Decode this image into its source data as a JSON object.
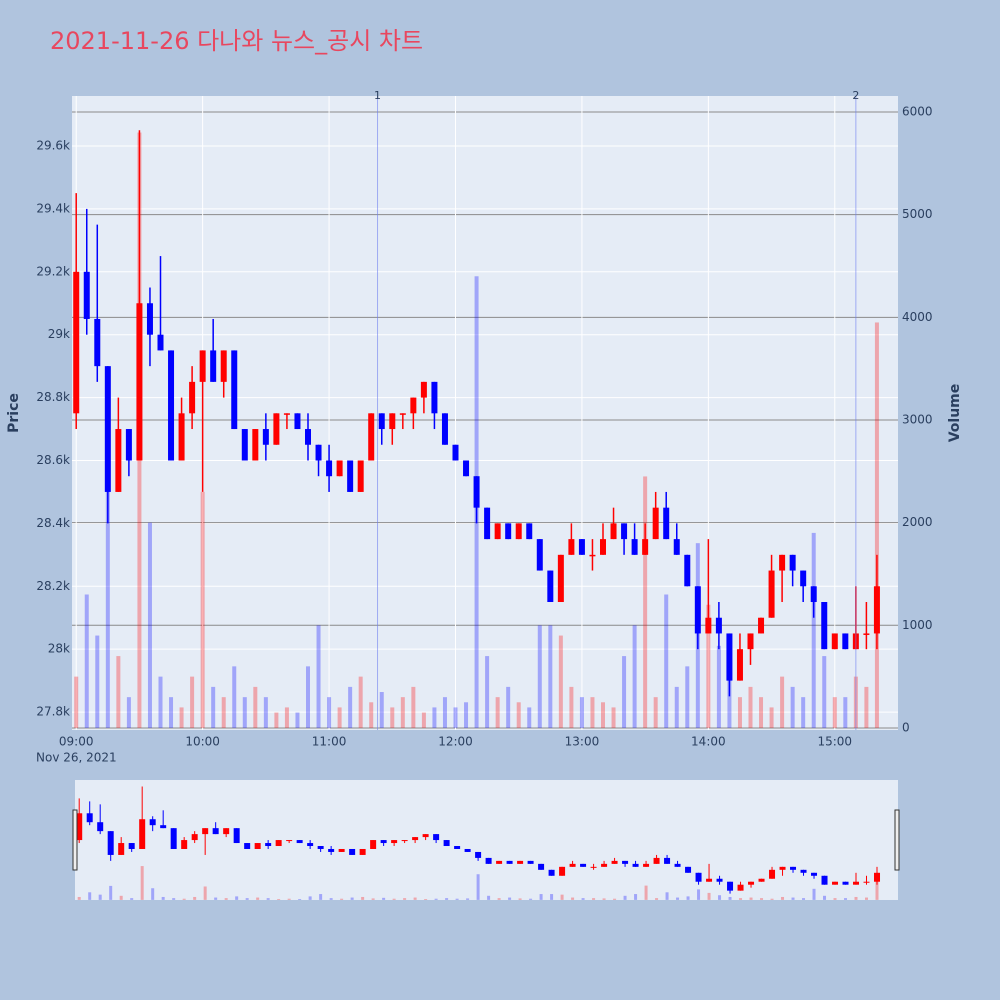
{
  "chart_data": {
    "type": "candlestick",
    "title": "2021-11-26 다나와 뉴스_공시 차트",
    "y_label": "Price",
    "y2_label": "Volume",
    "x_date_label": "Nov 26, 2021",
    "increasing_color": "#ff0000",
    "decreasing_color": "#0000ff",
    "grid": true,
    "x": [
      "2021-11-26 09:00",
      "2021-11-26 09:05",
      "2021-11-26 09:10",
      "2021-11-26 09:15",
      "2021-11-26 09:20",
      "2021-11-26 09:25",
      "2021-11-26 09:30",
      "2021-11-26 09:35",
      "2021-11-26 09:40",
      "2021-11-26 09:45",
      "2021-11-26 09:50",
      "2021-11-26 09:55",
      "2021-11-26 10:00",
      "2021-11-26 10:05",
      "2021-11-26 10:10",
      "2021-11-26 10:15",
      "2021-11-26 10:20",
      "2021-11-26 10:25",
      "2021-11-26 10:30",
      "2021-11-26 10:35",
      "2021-11-26 10:40",
      "2021-11-26 10:45",
      "2021-11-26 10:50",
      "2021-11-26 10:55",
      "2021-11-26 11:00",
      "2021-11-26 11:05",
      "2021-11-26 11:10",
      "2021-11-26 11:15",
      "2021-11-26 11:20",
      "2021-11-26 11:25",
      "2021-11-26 11:30",
      "2021-11-26 11:35",
      "2021-11-26 11:40",
      "2021-11-26 11:45",
      "2021-11-26 11:50",
      "2021-11-26 11:55",
      "2021-11-26 12:00",
      "2021-11-26 12:05",
      "2021-11-26 12:10",
      "2021-11-26 12:15",
      "2021-11-26 12:20",
      "2021-11-26 12:25",
      "2021-11-26 12:30",
      "2021-11-26 12:35",
      "2021-11-26 12:40",
      "2021-11-26 12:45",
      "2021-11-26 12:50",
      "2021-11-26 12:55",
      "2021-11-26 13:00",
      "2021-11-26 13:05",
      "2021-11-26 13:10",
      "2021-11-26 13:15",
      "2021-11-26 13:20",
      "2021-11-26 13:25",
      "2021-11-26 13:30",
      "2021-11-26 13:35",
      "2021-11-26 13:40",
      "2021-11-26 13:45",
      "2021-11-26 13:50",
      "2021-11-26 13:55",
      "2021-11-26 14:00",
      "2021-11-26 14:05",
      "2021-11-26 14:10",
      "2021-11-26 14:15",
      "2021-11-26 14:20",
      "2021-11-26 14:25",
      "2021-11-26 14:30",
      "2021-11-26 14:35",
      "2021-11-26 14:40",
      "2021-11-26 14:45",
      "2021-11-26 14:50",
      "2021-11-26 14:55",
      "2021-11-26 15:00",
      "2021-11-26 15:05",
      "2021-11-26 15:10",
      "2021-11-26 15:15",
      "2021-11-26 15:20"
    ],
    "open": [
      28750,
      29200,
      29050,
      28900,
      28500,
      28700,
      28600,
      29100,
      29000,
      28950,
      28600,
      28750,
      28850,
      28950,
      28850,
      28950,
      28700,
      28600,
      28700,
      28650,
      28750,
      28750,
      28700,
      28650,
      28600,
      28550,
      28600,
      28500,
      28600,
      28750,
      28700,
      28750,
      28750,
      28800,
      28850,
      28750,
      28650,
      28600,
      28550,
      28450,
      28350,
      28400,
      28350,
      28400,
      28350,
      28250,
      28150,
      28300,
      28350,
      28300,
      28300,
      28350,
      28400,
      28350,
      28300,
      28350,
      28450,
      28350,
      28300,
      28200,
      28050,
      28100,
      28050,
      27900,
      28000,
      28050,
      28100,
      28250,
      28300,
      28250,
      28200,
      28150,
      28000,
      28050,
      28000,
      28050,
      28050
    ],
    "high": [
      29450,
      29400,
      29350,
      28900,
      28800,
      28700,
      29650,
      29150,
      29250,
      28950,
      28800,
      28900,
      28950,
      29050,
      28950,
      28950,
      28700,
      28700,
      28750,
      28750,
      28750,
      28750,
      28750,
      28650,
      28650,
      28600,
      28600,
      28600,
      28750,
      28750,
      28750,
      28750,
      28800,
      28850,
      28850,
      28750,
      28650,
      28600,
      28550,
      28450,
      28400,
      28400,
      28400,
      28400,
      28350,
      28250,
      28300,
      28400,
      28350,
      28350,
      28400,
      28450,
      28400,
      28400,
      28400,
      28500,
      28500,
      28400,
      28300,
      28200,
      28350,
      28150,
      28050,
      28050,
      28050,
      28100,
      28300,
      28300,
      28300,
      28250,
      28200,
      28150,
      28050,
      28050,
      28200,
      28150,
      28300
    ],
    "low": [
      28700,
      29000,
      28850,
      28400,
      28500,
      28550,
      28600,
      28900,
      28950,
      28600,
      28600,
      28700,
      28500,
      28850,
      28800,
      28700,
      28600,
      28600,
      28600,
      28650,
      28700,
      28700,
      28600,
      28550,
      28500,
      28550,
      28500,
      28500,
      28600,
      28650,
      28650,
      28700,
      28700,
      28750,
      28700,
      28650,
      28600,
      28550,
      28400,
      28350,
      28350,
      28350,
      28350,
      28350,
      28250,
      28150,
      28150,
      28300,
      28300,
      28250,
      28300,
      28350,
      28300,
      28300,
      28300,
      28350,
      28350,
      28300,
      28200,
      28000,
      28050,
      28000,
      27850,
      27900,
      27950,
      28050,
      28100,
      28150,
      28200,
      28150,
      28100,
      28000,
      28000,
      28000,
      28000,
      28000,
      28000
    ],
    "close": [
      29200,
      29050,
      28900,
      28500,
      28700,
      28600,
      29100,
      29000,
      28950,
      28600,
      28750,
      28850,
      28950,
      28850,
      28950,
      28700,
      28600,
      28700,
      28650,
      28750,
      28750,
      28700,
      28650,
      28600,
      28550,
      28600,
      28500,
      28600,
      28750,
      28700,
      28750,
      28750,
      28800,
      28850,
      28750,
      28650,
      28600,
      28550,
      28450,
      28350,
      28400,
      28350,
      28400,
      28350,
      28250,
      28150,
      28300,
      28350,
      28300,
      28300,
      28350,
      28400,
      28350,
      28300,
      28350,
      28450,
      28350,
      28300,
      28200,
      28050,
      28100,
      28050,
      27900,
      28000,
      28050,
      28100,
      28250,
      28300,
      28250,
      28200,
      28150,
      28000,
      28050,
      28000,
      28050,
      28050,
      28200
    ],
    "volume": [
      500,
      1300,
      900,
      2400,
      700,
      300,
      5800,
      2000,
      500,
      300,
      200,
      500,
      2300,
      400,
      300,
      600,
      300,
      400,
      300,
      150,
      200,
      150,
      600,
      1000,
      300,
      200,
      400,
      500,
      250,
      350,
      200,
      300,
      400,
      150,
      200,
      300,
      200,
      250,
      4400,
      700,
      300,
      400,
      250,
      200,
      1000,
      1000,
      900,
      400,
      300,
      300,
      250,
      200,
      700,
      1000,
      2450,
      300,
      1300,
      400,
      600,
      1800,
      1200,
      800,
      500,
      300,
      400,
      300,
      200,
      500,
      400,
      300,
      1900,
      700,
      300,
      300,
      500,
      400,
      3950
    ],
    "annotations": [
      {
        "x": "2021-11-26 11:23",
        "label": "1"
      },
      {
        "x": "2021-11-26 15:10",
        "label": "2"
      }
    ],
    "xlim": [
      "2021-11-26 08:58",
      "2021-11-26 15:30"
    ],
    "xticks": [
      {
        "value": "2021-11-26 09:00",
        "label": "09:00"
      },
      {
        "value": "2021-11-26 10:00",
        "label": "10:00"
      },
      {
        "value": "2021-11-26 11:00",
        "label": "11:00"
      },
      {
        "value": "2021-11-26 12:00",
        "label": "12:00"
      },
      {
        "value": "2021-11-26 13:00",
        "label": "13:00"
      },
      {
        "value": "2021-11-26 14:00",
        "label": "14:00"
      },
      {
        "value": "2021-11-26 15:00",
        "label": "15:00"
      }
    ],
    "ylim": [
      27743,
      29759
    ],
    "yticks": [
      {
        "value": 27800,
        "label": "27.8k"
      },
      {
        "value": 28000,
        "label": "28k"
      },
      {
        "value": 28200,
        "label": "28.2k"
      },
      {
        "value": 28400,
        "label": "28.4k"
      },
      {
        "value": 28600,
        "label": "28.6k"
      },
      {
        "value": 28800,
        "label": "28.8k"
      },
      {
        "value": 29000,
        "label": "29k"
      },
      {
        "value": 29200,
        "label": "29.2k"
      },
      {
        "value": 29400,
        "label": "29.4k"
      },
      {
        "value": 29600,
        "label": "29.6k"
      }
    ],
    "y2lim": [
      -20,
      6156
    ],
    "y2ticks": [
      0,
      1000,
      2000,
      3000,
      4000,
      5000,
      6000
    ]
  }
}
